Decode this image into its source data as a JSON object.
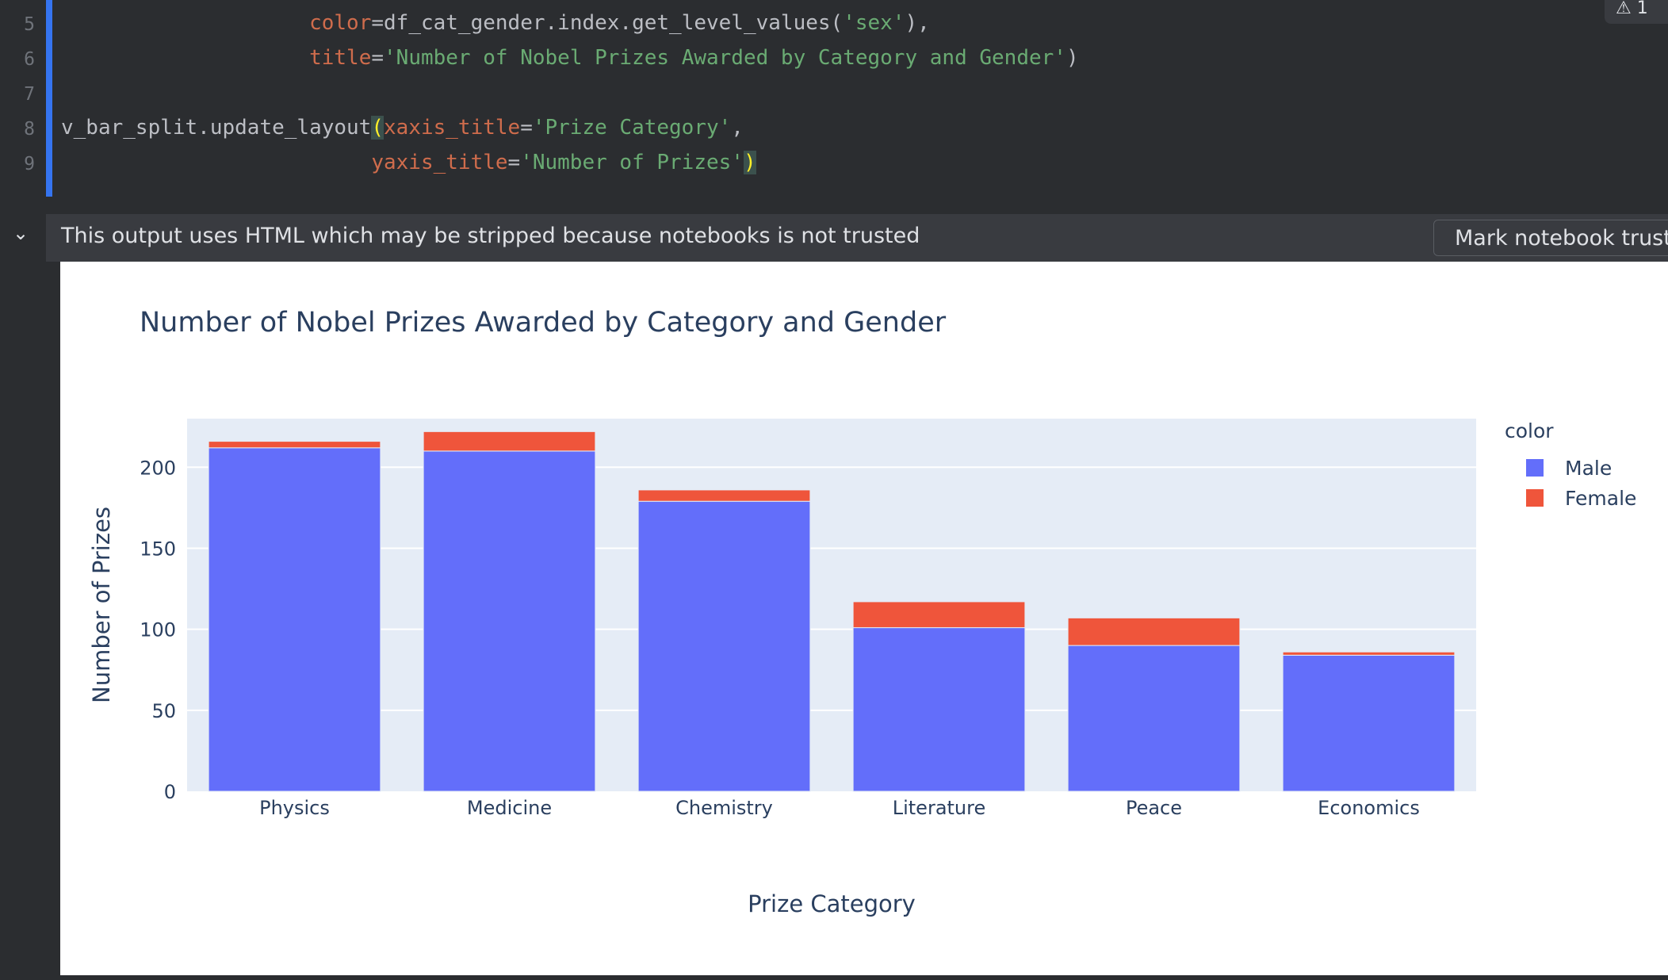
{
  "editor": {
    "lines": [
      {
        "num": "5",
        "indent": "                    ",
        "parts": [
          {
            "t": "color",
            "c": "tok-param"
          },
          {
            "t": "=df_cat_gender.index.get_level_values(",
            "c": ""
          },
          {
            "t": "'sex'",
            "c": "tok-str"
          },
          {
            "t": "),",
            "c": ""
          }
        ]
      },
      {
        "num": "6",
        "indent": "                    ",
        "parts": [
          {
            "t": "title",
            "c": "tok-param"
          },
          {
            "t": "=",
            "c": ""
          },
          {
            "t": "'Number of Nobel Prizes Awarded by Category and Gender'",
            "c": "tok-str"
          },
          {
            "t": ")",
            "c": ""
          }
        ]
      },
      {
        "num": "7",
        "indent": "",
        "parts": []
      },
      {
        "num": "8",
        "indent": "",
        "parts": [
          {
            "t": "v_bar_split.update_layout",
            "c": ""
          },
          {
            "t": "(",
            "c": "tok-paren-hl"
          },
          {
            "t": "xaxis_title",
            "c": "tok-param"
          },
          {
            "t": "=",
            "c": ""
          },
          {
            "t": "'Prize Category'",
            "c": "tok-str"
          },
          {
            "t": ",",
            "c": ""
          }
        ]
      },
      {
        "num": "9",
        "indent": "                         ",
        "parts": [
          {
            "t": "yaxis_title",
            "c": "tok-param"
          },
          {
            "t": "=",
            "c": ""
          },
          {
            "t": "'Number of Prizes'",
            "c": "tok-str"
          },
          {
            "t": ")",
            "c": "tok-paren-hl"
          }
        ]
      }
    ],
    "warning_count": "1"
  },
  "output_bar": {
    "message": "This output uses HTML which may be stripped because notebooks is not trusted",
    "trust_button_label": "Mark notebook trusted"
  },
  "chart_data": {
    "type": "bar",
    "barmode": "stack",
    "title": "Number of Nobel Prizes Awarded by Category and Gender",
    "xlabel": "Prize Category",
    "ylabel": "Number of Prizes",
    "categories": [
      "Physics",
      "Medicine",
      "Chemistry",
      "Literature",
      "Peace",
      "Economics"
    ],
    "series": [
      {
        "name": "Male",
        "color": "#636efa",
        "values": [
          212,
          210,
          179,
          101,
          90,
          84
        ]
      },
      {
        "name": "Female",
        "color": "#ef553b",
        "values": [
          4,
          12,
          7,
          16,
          17,
          2
        ]
      }
    ],
    "ylim": [
      0,
      230
    ],
    "yticks": [
      0,
      50,
      100,
      150,
      200
    ],
    "grid": true,
    "legend": {
      "title": "color",
      "placement": "right"
    },
    "plot_bg": "#e5ecf6"
  }
}
